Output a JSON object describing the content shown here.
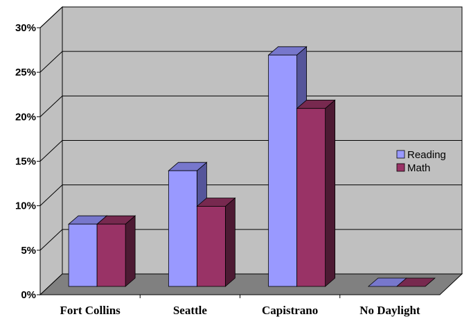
{
  "chart_data": {
    "type": "bar",
    "categories": [
      "Fort Collins",
      "Seattle",
      "Capistrano",
      "No Daylight"
    ],
    "series": [
      {
        "name": "Reading",
        "values": [
          7,
          13,
          26,
          0
        ],
        "color": "#9999ff",
        "top_color": "#7777cc",
        "side_color": "#55559a"
      },
      {
        "name": "Math",
        "values": [
          7,
          9,
          20,
          0
        ],
        "color": "#993366",
        "top_color": "#77294f",
        "side_color": "#4d1a33"
      }
    ],
    "y_ticks": [
      "0%",
      "5%",
      "10%",
      "15%",
      "20%",
      "25%",
      "30%"
    ],
    "ylim": [
      0,
      30
    ],
    "title": "",
    "xlabel": "",
    "ylabel": "",
    "grid": true,
    "legend_position": "right",
    "three_d": true,
    "colors": {
      "wall": "#c0c0c0",
      "floor": "#808080",
      "grid": "#000000"
    }
  }
}
